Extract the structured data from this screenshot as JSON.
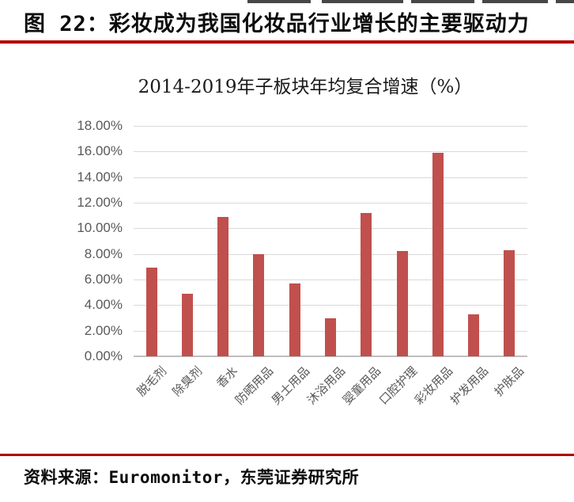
{
  "header": {
    "title": "图 22：彩妆成为我国化妆品行业增长的主要驱动力"
  },
  "chart_data": {
    "type": "bar",
    "title": "2014-2019年子板块年均复合增速（%）",
    "categories": [
      "脱毛剂",
      "除臭剂",
      "香水",
      "防晒用品",
      "男士用品",
      "沐浴用品",
      "婴童用品",
      "口腔护理",
      "彩妆用品",
      "护发用品",
      "护肤品"
    ],
    "values": [
      6.9,
      4.9,
      10.9,
      8.0,
      5.7,
      3.0,
      11.2,
      8.2,
      15.9,
      3.3,
      8.3
    ],
    "unit": "%",
    "xlabel": "",
    "ylabel": "",
    "ylim": [
      0,
      18
    ],
    "y_tick_step": 2,
    "y_tick_labels": [
      "0.00%",
      "2.00%",
      "4.00%",
      "6.00%",
      "8.00%",
      "10.00%",
      "12.00%",
      "14.00%",
      "16.00%",
      "18.00%"
    ],
    "grid": true,
    "legend": "none",
    "bar_color": "#c0504d",
    "gridline_color": "#d9d9d9",
    "axis_label_color": "#595959"
  },
  "footer": {
    "source": "资料来源：Euromonitor，东莞证券研究所"
  }
}
